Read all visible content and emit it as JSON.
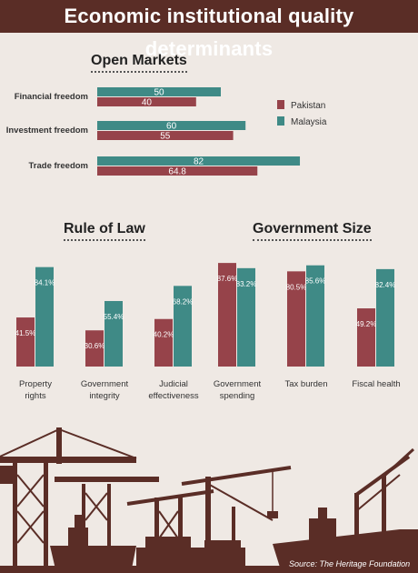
{
  "title": "Economic institutional quality determinants",
  "colors": {
    "Pakistan": "#96434a",
    "Malaysia": "#3f8a86",
    "skyline": "#5a2d26",
    "background": "#efe9e4"
  },
  "source": "Source: The Heritage Foundation",
  "chart_data": [
    {
      "type": "bar",
      "orientation": "horizontal",
      "title": "Open Markets",
      "categories": [
        "Financial freedom",
        "Investment freedom",
        "Trade freedom"
      ],
      "series": [
        {
          "name": "Malaysia",
          "values": [
            50,
            60,
            82
          ],
          "labels": [
            "50",
            "60",
            "82"
          ]
        },
        {
          "name": "Pakistan",
          "values": [
            40,
            55,
            64.8
          ],
          "labels": [
            "40",
            "55",
            "64.8"
          ]
        }
      ],
      "xlim": [
        0,
        100
      ],
      "legend": "right",
      "legend_entries": [
        "Pakistan",
        "Malaysia"
      ]
    },
    {
      "type": "bar",
      "title": "Rule of Law",
      "categories": [
        "Property rights",
        "Government integrity",
        "Judicial effectiveness"
      ],
      "category_lines": [
        [
          "Property",
          "rights"
        ],
        [
          "Government",
          "integrity"
        ],
        [
          "Judicial",
          "effectiveness"
        ]
      ],
      "series": [
        {
          "name": "Pakistan",
          "values": [
            41.5,
            30.6,
            40.2
          ],
          "labels": [
            "41.5%",
            "30.6%",
            "40.2%"
          ]
        },
        {
          "name": "Malaysia",
          "values": [
            84.1,
            55.4,
            68.2
          ],
          "labels": [
            "84.1%",
            "55.4%",
            "68.2%"
          ]
        }
      ],
      "ylim": [
        0,
        100
      ]
    },
    {
      "type": "bar",
      "title": "Government Size",
      "categories": [
        "Government spending",
        "Tax burden",
        "Fiscal health"
      ],
      "category_lines": [
        [
          "Government",
          "spending"
        ],
        [
          "Tax burden"
        ],
        [
          "Fiscal health"
        ]
      ],
      "series": [
        {
          "name": "Pakistan",
          "values": [
            87.6,
            80.5,
            49.2
          ],
          "labels": [
            "87.6%",
            "80.5%",
            "49.2%"
          ]
        },
        {
          "name": "Malaysia",
          "values": [
            83.2,
            85.6,
            82.4
          ],
          "labels": [
            "83.2%",
            "85.6%",
            "82.4%"
          ]
        }
      ],
      "ylim": [
        0,
        100
      ]
    }
  ]
}
